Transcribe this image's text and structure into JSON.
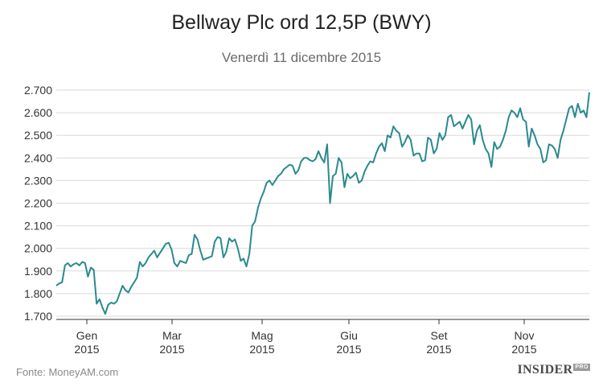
{
  "chart_data": {
    "type": "line",
    "title": "Bellway Plc ord 12,5P (BWY)",
    "subtitle": "Venerdì 11 dicembre 2015",
    "xlabel": "",
    "ylabel": "",
    "ylim": [
      1700,
      2700
    ],
    "ytick_labels": [
      "1.700",
      "1.800",
      "1.900",
      "2.000",
      "2.100",
      "2.200",
      "2.300",
      "2.400",
      "2.500",
      "2.600",
      "2.700"
    ],
    "xtick_labels": [
      {
        "month": "Gen",
        "year": "2015"
      },
      {
        "month": "Mar",
        "year": "2015"
      },
      {
        "month": "Mag",
        "year": "2015"
      },
      {
        "month": "Giu",
        "year": "2015"
      },
      {
        "month": "Set",
        "year": "2015"
      },
      {
        "month": "Nov",
        "year": "2015"
      }
    ],
    "line_color": "#2a8a8e",
    "series": [
      {
        "name": "BWY",
        "values": [
          1835,
          1845,
          1850,
          1925,
          1935,
          1920,
          1930,
          1935,
          1925,
          1940,
          1935,
          1875,
          1915,
          1905,
          1755,
          1775,
          1740,
          1710,
          1750,
          1760,
          1755,
          1765,
          1800,
          1835,
          1815,
          1805,
          1830,
          1850,
          1870,
          1940,
          1920,
          1935,
          1960,
          1975,
          1990,
          1960,
          1980,
          2000,
          2020,
          2025,
          1995,
          1935,
          1920,
          1945,
          1940,
          1935,
          1970,
          1975,
          2060,
          2040,
          1990,
          1950,
          1955,
          1960,
          1965,
          2030,
          2050,
          2045,
          1960,
          1985,
          2045,
          2030,
          2040,
          2000,
          1945,
          1955,
          1920,
          1975,
          2100,
          2120,
          2180,
          2220,
          2250,
          2290,
          2300,
          2280,
          2300,
          2320,
          2330,
          2350,
          2360,
          2370,
          2365,
          2330,
          2345,
          2385,
          2400,
          2400,
          2390,
          2385,
          2395,
          2430,
          2400,
          2380,
          2460,
          2200,
          2320,
          2330,
          2400,
          2380,
          2270,
          2330,
          2310,
          2320,
          2335,
          2290,
          2300,
          2340,
          2365,
          2385,
          2380,
          2420,
          2450,
          2465,
          2430,
          2500,
          2490,
          2540,
          2520,
          2510,
          2450,
          2470,
          2500,
          2480,
          2410,
          2420,
          2420,
          2385,
          2390,
          2490,
          2480,
          2420,
          2440,
          2510,
          2480,
          2500,
          2580,
          2590,
          2540,
          2550,
          2560,
          2530,
          2560,
          2590,
          2570,
          2460,
          2520,
          2545,
          2480,
          2440,
          2420,
          2360,
          2470,
          2440,
          2450,
          2480,
          2520,
          2580,
          2610,
          2600,
          2580,
          2620,
          2570,
          2560,
          2450,
          2530,
          2500,
          2460,
          2440,
          2380,
          2390,
          2460,
          2455,
          2440,
          2400,
          2480,
          2520,
          2570,
          2620,
          2630,
          2580,
          2640,
          2600,
          2610,
          2580,
          2690
        ]
      }
    ]
  },
  "footer": {
    "source": "Fonte:  MoneyAM.com",
    "brand": "INSIDER",
    "brand_sub": "PRO"
  }
}
